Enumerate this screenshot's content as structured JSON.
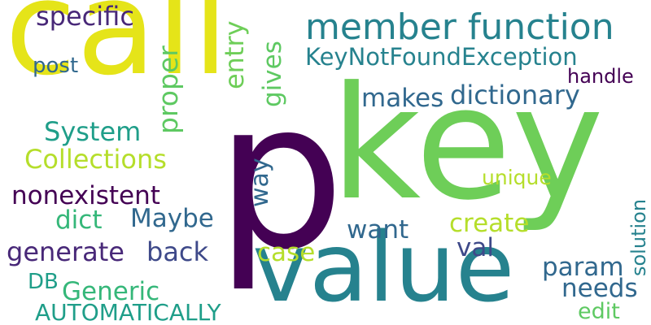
{
  "palette": {
    "dark_purple": "#440154",
    "purple": "#482878",
    "slate_blue": "#3e4989",
    "steel_blue": "#31688e",
    "teal": "#26828e",
    "green_teal": "#1f9e89",
    "green": "#35b779",
    "light_green": "#6ece58",
    "bright_green": "#5ec962",
    "lime": "#b5de2b",
    "yellow": "#e5e419"
  },
  "words": {
    "call": "call",
    "key": "key",
    "p": "p",
    "value": "value",
    "member_function": "member function",
    "keynotfound": "KeyNotFoundException",
    "specific": "specific",
    "post": "post",
    "makes": "makes",
    "dictionary": "dictionary",
    "handle": "handle",
    "entry": "entry",
    "gives": "gives",
    "proper": "proper",
    "system": "System",
    "collections": "Collections",
    "unique": "unique",
    "nonexistent": "nonexistent",
    "way": "way",
    "dict": "dict",
    "maybe": "Maybe",
    "create": "create",
    "want": "want",
    "val": "val",
    "solution": "solution",
    "generate": "generate",
    "back": "back",
    "case": "case",
    "param": "param",
    "db": "DB",
    "generic": "Generic",
    "needs": "needs",
    "automatically": "AUTOMATICALLY",
    "edit": "edit"
  }
}
